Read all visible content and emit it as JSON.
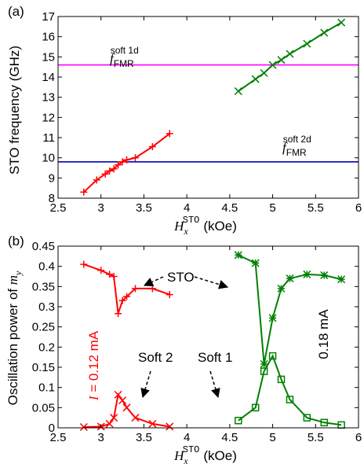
{
  "chart_data": [
    {
      "type": "line",
      "panel_label": "(a)",
      "ylabel": "STO frequency (GHz)",
      "xlabel": {
        "main": "H",
        "sub": "x",
        "sup": "STO",
        "unit": "(kOe)"
      },
      "xlim": [
        2.5,
        6
      ],
      "ylim": [
        8,
        17
      ],
      "xticks": [
        2.5,
        3,
        3.5,
        4,
        4.5,
        5,
        5.5,
        6
      ],
      "xtick_labels": [
        "2.5",
        "3",
        "3.5",
        "4",
        "4.5",
        "5",
        "5.5",
        "6"
      ],
      "yticks": [
        8,
        9,
        10,
        11,
        12,
        13,
        14,
        15,
        16,
        17
      ],
      "ytick_labels": [
        "8",
        "9",
        "10",
        "11",
        "12",
        "13",
        "14",
        "15",
        "16",
        "17"
      ],
      "grid": false,
      "series": [
        {
          "color": "#ff0000",
          "marker": "plus",
          "x": [
            2.8,
            2.95,
            3.05,
            3.1,
            3.15,
            3.2,
            3.25,
            3.3,
            3.4,
            3.6,
            3.8
          ],
          "y": [
            8.3,
            8.9,
            9.2,
            9.35,
            9.45,
            9.65,
            9.8,
            9.9,
            10.0,
            10.55,
            11.2
          ]
        },
        {
          "color": "#008000",
          "marker": "cross",
          "x": [
            4.6,
            4.8,
            4.9,
            5.0,
            5.1,
            5.2,
            5.4,
            5.6,
            5.8
          ],
          "y": [
            13.3,
            13.9,
            14.2,
            14.6,
            14.85,
            15.15,
            15.65,
            16.2,
            16.7
          ]
        }
      ],
      "hlines": [
        {
          "y": 14.6,
          "color": "#ff00ff",
          "label_main": "f",
          "label_sub": "FMR",
          "label_sup": "soft 1d"
        },
        {
          "y": 9.8,
          "color": "#0000c0",
          "label_main": "f",
          "label_sub": "FMR",
          "label_sup": "soft 2d"
        }
      ]
    },
    {
      "type": "line",
      "panel_label": "(b)",
      "ylabel": {
        "text": "Oscillation power of ",
        "var": "m",
        "sub": "y"
      },
      "xlabel": {
        "main": "H",
        "sub": "x",
        "sup": "STO",
        "unit": "(kOe)"
      },
      "xlim": [
        2.5,
        6
      ],
      "ylim": [
        0,
        0.45
      ],
      "xticks": [
        2.5,
        3,
        3.5,
        4,
        4.5,
        5,
        5.5,
        6
      ],
      "xtick_labels": [
        "2.5",
        "3",
        "3.5",
        "4",
        "4.5",
        "5",
        "5.5",
        "6"
      ],
      "yticks": [
        0,
        0.05,
        0.1,
        0.15,
        0.2,
        0.25,
        0.3,
        0.35,
        0.4,
        0.45
      ],
      "ytick_labels": [
        "0",
        "0.05",
        "0.1",
        "0.15",
        "0.2",
        "0.25",
        "0.3",
        "0.35",
        "0.4",
        "0.45"
      ],
      "grid": false,
      "series": [
        {
          "color": "#ff0000",
          "marker": "plus",
          "x": [
            2.8,
            3.0,
            3.1,
            3.15,
            3.2,
            3.25,
            3.3,
            3.4,
            3.6,
            3.8
          ],
          "y": [
            0.405,
            0.39,
            0.38,
            0.375,
            0.283,
            0.315,
            0.325,
            0.345,
            0.345,
            0.33
          ]
        },
        {
          "color": "#ff0000",
          "marker": "cross",
          "x": [
            2.8,
            3.0,
            3.1,
            3.15,
            3.2,
            3.25,
            3.3,
            3.4,
            3.6,
            3.8
          ],
          "y": [
            0.002,
            0.003,
            0.01,
            0.025,
            0.082,
            0.068,
            0.05,
            0.025,
            0.01,
            0.003
          ]
        },
        {
          "color": "#008000",
          "marker": "asterisk",
          "x": [
            4.6,
            4.8,
            4.9,
            5.0,
            5.1,
            5.2,
            5.4,
            5.6,
            5.8
          ],
          "y": [
            0.428,
            0.408,
            0.158,
            0.272,
            0.345,
            0.37,
            0.38,
            0.378,
            0.368
          ]
        },
        {
          "color": "#008000",
          "marker": "square",
          "x": [
            4.6,
            4.8,
            4.9,
            5.0,
            5.1,
            5.2,
            5.4,
            5.6,
            5.8
          ],
          "y": [
            0.018,
            0.05,
            0.14,
            0.178,
            0.12,
            0.07,
            0.025,
            0.013,
            0.007
          ]
        }
      ],
      "annotations": {
        "sto": "STO",
        "soft2": "Soft 2",
        "soft1": "Soft 1",
        "current_low": {
          "var": "I",
          "rest": " = 0.12 mA",
          "color": "#ff0000"
        },
        "current_high": {
          "text": "0.18 mA",
          "color": "#008000"
        }
      }
    }
  ]
}
